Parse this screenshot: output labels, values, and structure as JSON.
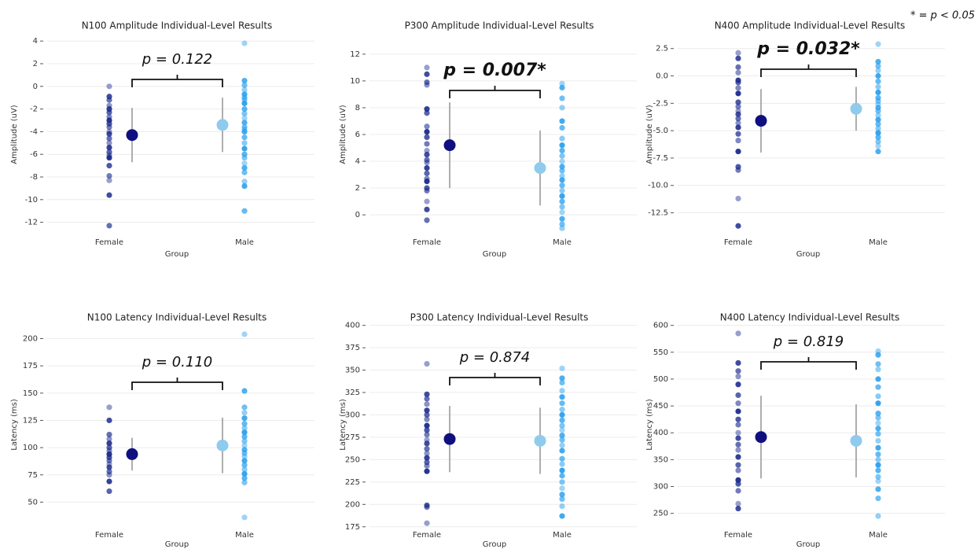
{
  "note": "* = p < 0.05",
  "chart_data": [
    {
      "type": "strip",
      "title": "N100 Amplitude Individual-Level Results",
      "x_label": "Group",
      "y_label": "Amplitude (uV)",
      "categories": [
        "Female",
        "Male"
      ],
      "series": [
        {
          "color": "#1a2a8c",
          "values": [
            0,
            -0.9,
            -1.2,
            -1.7,
            -2,
            -2.3,
            -2.7,
            -3,
            -3.3,
            -3.6,
            -4,
            -4.2,
            -4.6,
            -5,
            -5.4,
            -5.8,
            -6.1,
            -6.3,
            -7,
            -7.9,
            -8.3,
            -9.6,
            -12.3
          ]
        },
        {
          "color": "#2aa0ee",
          "values": [
            3.8,
            0.5,
            0.1,
            -0.3,
            -0.7,
            -1,
            -1.2,
            -1.5,
            -2,
            -2.4,
            -2.8,
            -3.2,
            -3.6,
            -3.8,
            -4,
            -4.5,
            -5,
            -5.5,
            -6,
            -6.3,
            -6.8,
            -7.2,
            -7.6,
            -8.4,
            -8.8,
            -11
          ]
        }
      ],
      "means": [
        -4.3,
        -3.4
      ],
      "errors": [
        2.4,
        2.4
      ],
      "mean_colors": [
        "#0f0f80",
        "#8fcbee"
      ],
      "annotation": "p = 0.122",
      "annotation_bold": false,
      "ylim": [
        -13,
        4.5
      ],
      "yticks": [
        -12,
        -10,
        -8,
        -6,
        -4,
        -2,
        0,
        2,
        4
      ],
      "grid": true
    },
    {
      "type": "strip",
      "title": "P300 Amplitude Individual-Level Results",
      "x_label": "Group",
      "y_label": "Amplitude (uV)",
      "categories": [
        "Female",
        "Male"
      ],
      "series": [
        {
          "color": "#1a2a8c",
          "values": [
            11,
            10.5,
            9.9,
            9.7,
            7.9,
            7.6,
            6.6,
            6.2,
            5.8,
            5.3,
            4.8,
            4.5,
            4.1,
            3.9,
            3.5,
            3.1,
            2.7,
            2.5,
            2,
            1.8,
            1,
            0.4,
            -0.4
          ]
        },
        {
          "color": "#2aa0ee",
          "values": [
            9.8,
            9.5,
            8.7,
            8,
            7,
            6.5,
            5.7,
            5.2,
            4.8,
            4.4,
            4,
            3.6,
            3.3,
            2.9,
            2.6,
            2.2,
            1.8,
            1.4,
            1,
            0.6,
            0.2,
            -0.3,
            -0.7,
            -1
          ]
        }
      ],
      "means": [
        5.2,
        3.5
      ],
      "errors": [
        3.2,
        2.8
      ],
      "mean_colors": [
        "#0f0f80",
        "#8fcbee"
      ],
      "annotation": "p = 0.007*",
      "annotation_bold": true,
      "ylim": [
        -1.4,
        13.4
      ],
      "yticks": [
        0,
        2,
        4,
        6,
        8,
        10,
        12
      ],
      "grid": true
    },
    {
      "type": "strip",
      "title": "N400 Amplitude Individual-Level Results",
      "x_label": "Group",
      "y_label": "Amplitude (uV)",
      "categories": [
        "Female",
        "Male"
      ],
      "series": [
        {
          "color": "#1a2a8c",
          "values": [
            2.1,
            1.6,
            0.8,
            0.3,
            -0.4,
            -0.6,
            -1.1,
            -1.6,
            -2.4,
            -2.8,
            -3.2,
            -3.5,
            -3.9,
            -4.3,
            -4.7,
            -5.3,
            -5.9,
            -6.9,
            -8.3,
            -8.6,
            -11.2,
            -13.7
          ]
        },
        {
          "color": "#2aa0ee",
          "values": [
            2.9,
            1.3,
            0.9,
            0.5,
            0,
            -0.5,
            -1,
            -1.5,
            -2,
            -2.3,
            -2.6,
            -2.9,
            -3.2,
            -3.6,
            -4,
            -4.4,
            -4.8,
            -5.2,
            -5.6,
            -6,
            -6.4,
            -6.9
          ]
        }
      ],
      "means": [
        -4.1,
        -3
      ],
      "errors": [
        2.9,
        2
      ],
      "mean_colors": [
        "#0f0f80",
        "#8fcbee"
      ],
      "annotation": "p = 0.032*",
      "annotation_bold": true,
      "ylim": [
        -14.4,
        3.7
      ],
      "yticks": [
        2.5,
        {
          "value": 0,
          "label": "0.0"
        },
        -2.5,
        {
          "value": -5,
          "label": "-5.0"
        },
        -7.5,
        {
          "value": -10,
          "label": "-10.0"
        },
        -12.5
      ],
      "grid": true
    },
    {
      "type": "strip",
      "title": "N100 Latency Individual-Level Results",
      "x_label": "Group",
      "y_label": "Latency (ms)",
      "categories": [
        "Female",
        "Male"
      ],
      "series": [
        {
          "color": "#1a2a8c",
          "values": [
            137,
            125,
            112,
            108,
            104,
            100,
            97,
            94,
            91,
            88,
            85,
            82,
            78,
            75,
            69,
            60
          ]
        },
        {
          "color": "#2aa0ee",
          "values": [
            204,
            152,
            137,
            132,
            127,
            122,
            118,
            114,
            110,
            106,
            102,
            98,
            95,
            92,
            88,
            84,
            80,
            76,
            72,
            68,
            36
          ]
        }
      ],
      "means": [
        94,
        102
      ],
      "errors": [
        15,
        25.5
      ],
      "mean_colors": [
        "#0f0f80",
        "#8fcbee"
      ],
      "annotation": "p = 0.110",
      "annotation_bold": false,
      "ylim": [
        20,
        222
      ],
      "yticks": [
        50,
        75,
        100,
        125,
        150,
        175,
        200
      ],
      "grid": true
    },
    {
      "type": "strip",
      "title": "P300 Latency Individual-Level Results",
      "x_label": "Group",
      "y_label": "Latency (ms)",
      "categories": [
        "Female",
        "Male"
      ],
      "series": [
        {
          "color": "#1a2a8c",
          "values": [
            357,
            323,
            318,
            312,
            305,
            300,
            295,
            288,
            283,
            278,
            272,
            268,
            262,
            257,
            252,
            247,
            243,
            237,
            199,
            197,
            179
          ]
        },
        {
          "color": "#2aa0ee",
          "values": [
            352,
            341,
            336,
            327,
            320,
            313,
            306,
            300,
            294,
            288,
            283,
            277,
            272,
            266,
            260,
            251,
            245,
            238,
            232,
            225,
            218,
            211,
            206,
            198,
            187
          ]
        }
      ],
      "means": [
        273,
        271
      ],
      "errors": [
        37,
        37
      ],
      "mean_colors": [
        "#0f0f80",
        "#8fcbee"
      ],
      "annotation": "p = 0.874",
      "annotation_bold": false,
      "ylim": [
        166,
        412
      ],
      "yticks": [
        175,
        200,
        225,
        250,
        275,
        300,
        325,
        350,
        375,
        400
      ],
      "grid": true
    },
    {
      "type": "strip",
      "title": "N400 Latency Individual-Level Results",
      "x_label": "Group",
      "y_label": "Latency (ms)",
      "categories": [
        "Female",
        "Male"
      ],
      "series": [
        {
          "color": "#1a2a8c",
          "values": [
            585,
            530,
            515,
            505,
            490,
            470,
            455,
            440,
            425,
            415,
            400,
            390,
            378,
            368,
            355,
            340,
            330,
            312,
            305,
            292,
            268,
            259
          ]
        },
        {
          "color": "#2aa0ee",
          "values": [
            552,
            545,
            528,
            518,
            500,
            485,
            468,
            455,
            436,
            428,
            418,
            408,
            398,
            385,
            372,
            360,
            350,
            340,
            330,
            318,
            310,
            295,
            278,
            245
          ]
        }
      ],
      "means": [
        392,
        385
      ],
      "errors": [
        77,
        68
      ],
      "mean_colors": [
        "#0f0f80",
        "#8fcbee"
      ],
      "annotation": "p = 0.819",
      "annotation_bold": false,
      "ylim": [
        210,
        620
      ],
      "yticks": [
        250,
        300,
        350,
        400,
        450,
        500,
        550,
        600
      ],
      "grid": true
    }
  ]
}
